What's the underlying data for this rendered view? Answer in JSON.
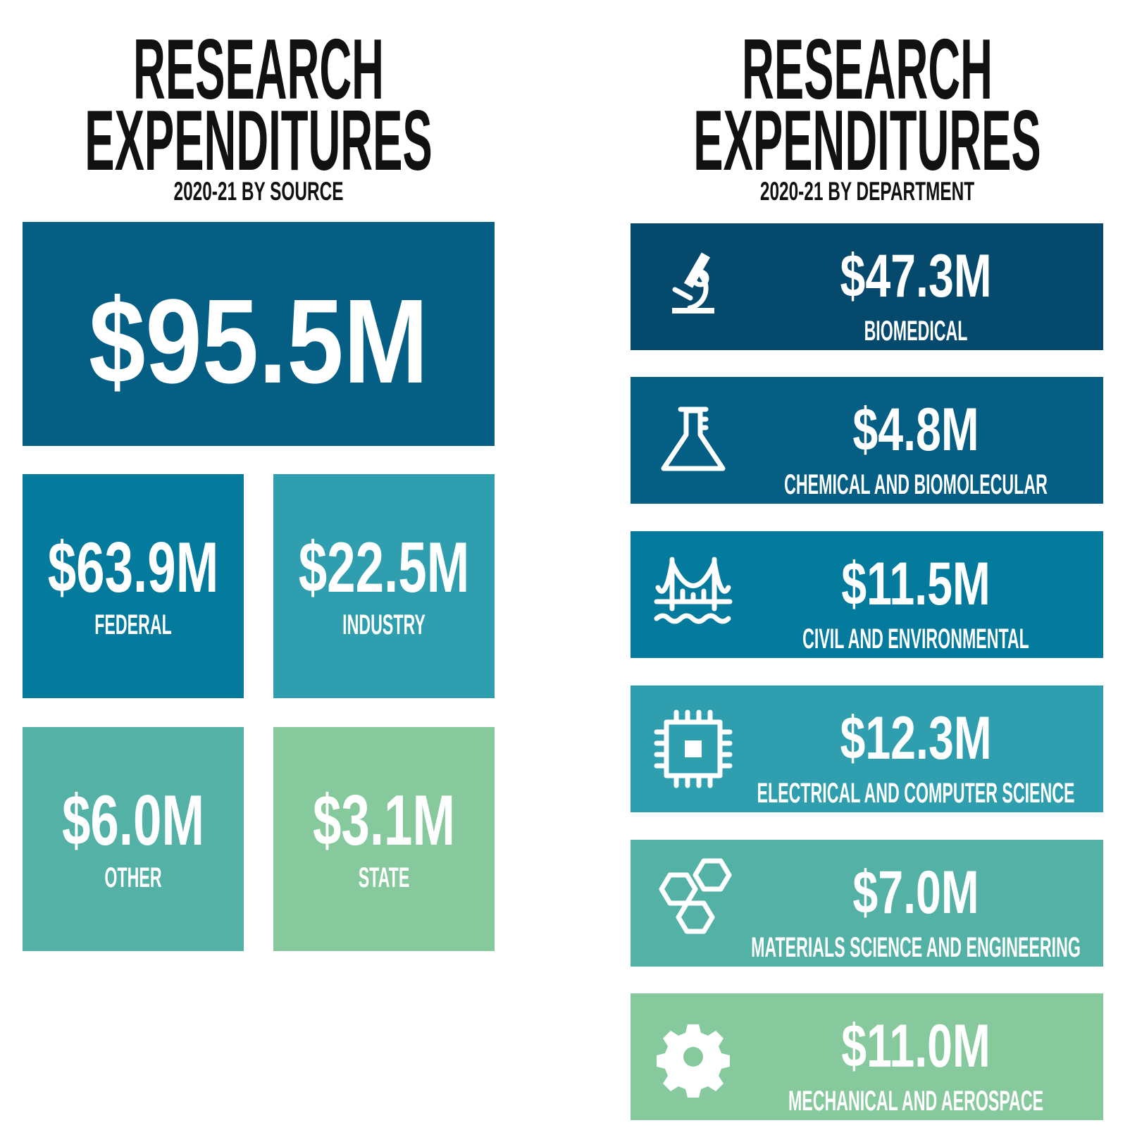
{
  "left": {
    "title_line1": "RESEARCH",
    "title_line2": "EXPENDITURES",
    "subtitle": "2020-21 BY SOURCE",
    "total": "$95.5M",
    "sources": [
      {
        "value": "$63.9M",
        "label": "FEDERAL"
      },
      {
        "value": "$22.5M",
        "label": "INDUSTRY"
      },
      {
        "value": "$6.0M",
        "label": "OTHER"
      },
      {
        "value": "$3.1M",
        "label": "STATE"
      }
    ]
  },
  "right": {
    "title_line1": "RESEARCH",
    "title_line2": "EXPENDITURES",
    "subtitle": "2020-21 BY DEPARTMENT",
    "departments": [
      {
        "value": "$47.3M",
        "label": "BIOMEDICAL"
      },
      {
        "value": "$4.8M",
        "label": "CHEMICAL AND BIOMOLECULAR"
      },
      {
        "value": "$11.5M",
        "label": "CIVIL AND ENVIRONMENTAL"
      },
      {
        "value": "$12.3M",
        "label": "ELECTRICAL AND COMPUTER SCIENCE"
      },
      {
        "value": "$7.0M",
        "label": "MATERIALS SCIENCE AND ENGINEERING"
      },
      {
        "value": "$11.0M",
        "label": "MECHANICAL AND AEROSPACE"
      }
    ]
  }
}
